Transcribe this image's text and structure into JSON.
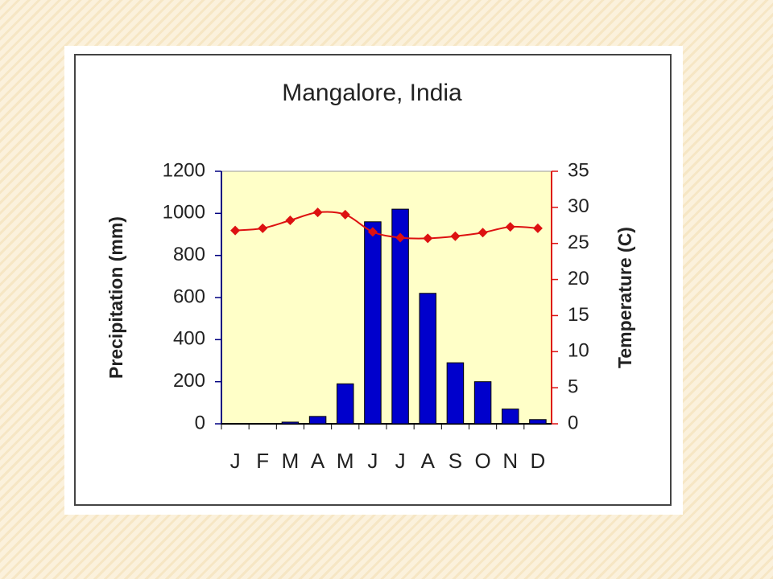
{
  "chart_data": {
    "type": "combo",
    "title": "Mangalore, India",
    "y_label": "Precipitation (mm)",
    "y2_label": "Temperature (C)",
    "categories": [
      "J",
      "F",
      "M",
      "A",
      "M",
      "J",
      "J",
      "A",
      "S",
      "O",
      "N",
      "D"
    ],
    "series": [
      {
        "type": "bar",
        "color": "#0000cc",
        "values": [
          0,
          0,
          8,
          35,
          190,
          960,
          1020,
          620,
          290,
          200,
          70,
          20
        ]
      },
      {
        "type": "line",
        "color": "#dd1111",
        "axis": "y2",
        "values": [
          26.8,
          27.1,
          28.2,
          29.3,
          29.0,
          26.6,
          25.8,
          25.7,
          26.0,
          26.5,
          27.3,
          27.1
        ]
      }
    ],
    "ylim": [
      0,
      1200
    ],
    "yticks": [
      0,
      200,
      400,
      600,
      800,
      1000,
      1200
    ],
    "y2lim": [
      0,
      35
    ],
    "y2ticks": [
      0,
      5,
      10,
      15,
      20,
      25,
      30,
      35
    ],
    "plot_background": "#ffffc8"
  }
}
